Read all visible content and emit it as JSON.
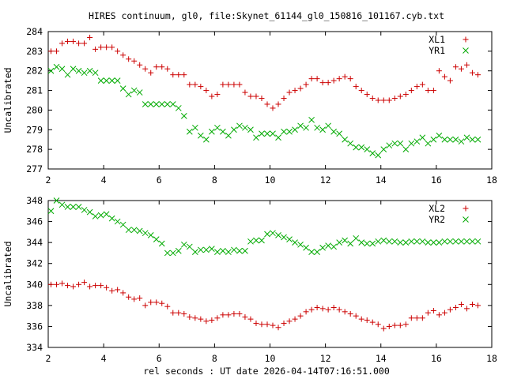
{
  "title": "HIRES continuum, gl0, file:Skynet_61144_gl0_150816_101167.cyb.txt",
  "xlabel": "rel seconds : UT date 2026-04-14T07:16:51.000",
  "colors": {
    "red": "#cc0000",
    "green": "#00aa00"
  },
  "chart_data": [
    {
      "type": "scatter",
      "ylabel": "Uncalibrated",
      "xlim": [
        2,
        18
      ],
      "ylim": [
        277,
        284
      ],
      "xticks": [
        2,
        4,
        6,
        8,
        10,
        12,
        14,
        16,
        18
      ],
      "yticks": [
        277,
        278,
        279,
        280,
        281,
        282,
        283,
        284
      ],
      "legend_position": "top-right",
      "x": [
        2.1,
        2.3,
        2.5,
        2.7,
        2.9,
        3.1,
        3.3,
        3.5,
        3.7,
        3.9,
        4.1,
        4.3,
        4.5,
        4.7,
        4.9,
        5.1,
        5.3,
        5.5,
        5.7,
        5.9,
        6.1,
        6.3,
        6.5,
        6.7,
        6.9,
        7.1,
        7.3,
        7.5,
        7.7,
        7.9,
        8.1,
        8.3,
        8.5,
        8.7,
        8.9,
        9.1,
        9.3,
        9.5,
        9.7,
        9.9,
        10.1,
        10.3,
        10.5,
        10.7,
        10.9,
        11.1,
        11.3,
        11.5,
        11.7,
        11.9,
        12.1,
        12.3,
        12.5,
        12.7,
        12.9,
        13.1,
        13.3,
        13.5,
        13.7,
        13.9,
        14.1,
        14.3,
        14.5,
        14.7,
        14.9,
        15.1,
        15.3,
        15.5,
        15.7,
        15.9,
        16.1,
        16.3,
        16.5,
        16.7,
        16.9,
        17.1,
        17.3,
        17.5
      ],
      "series": [
        {
          "name": "XL1",
          "color": "#cc0000",
          "marker": "plus",
          "values": [
            283.0,
            283.0,
            283.4,
            283.5,
            283.5,
            283.4,
            283.4,
            283.7,
            283.1,
            283.2,
            283.2,
            283.2,
            283.0,
            282.8,
            282.6,
            282.5,
            282.3,
            282.1,
            281.9,
            282.2,
            282.2,
            282.1,
            281.8,
            281.8,
            281.8,
            281.3,
            281.3,
            281.2,
            281.0,
            280.7,
            280.8,
            281.3,
            281.3,
            281.3,
            281.3,
            280.9,
            280.7,
            280.7,
            280.6,
            280.3,
            280.1,
            280.3,
            280.6,
            280.9,
            281.0,
            281.1,
            281.3,
            281.6,
            281.6,
            281.4,
            281.4,
            281.5,
            281.6,
            281.7,
            281.6,
            281.2,
            281.0,
            280.8,
            280.6,
            280.5,
            280.5,
            280.5,
            280.6,
            280.7,
            280.8,
            281.0,
            281.2,
            281.3,
            281.0,
            281.0,
            282.0,
            281.7,
            281.5,
            282.2,
            282.1,
            282.3,
            281.9,
            281.8
          ]
        },
        {
          "name": "YR1",
          "color": "#00aa00",
          "marker": "x",
          "values": [
            282.0,
            282.2,
            282.1,
            281.8,
            282.1,
            282.0,
            281.9,
            282.0,
            281.9,
            281.5,
            281.5,
            281.5,
            281.5,
            281.1,
            280.8,
            281.0,
            280.9,
            280.3,
            280.3,
            280.3,
            280.3,
            280.3,
            280.3,
            280.1,
            279.7,
            278.9,
            279.1,
            278.7,
            278.5,
            278.9,
            279.1,
            278.9,
            278.7,
            279.0,
            279.2,
            279.1,
            279.0,
            278.6,
            278.8,
            278.8,
            278.8,
            278.6,
            278.9,
            278.9,
            279.0,
            279.2,
            279.1,
            279.5,
            279.1,
            279.0,
            279.2,
            278.9,
            278.8,
            278.5,
            278.3,
            278.1,
            278.1,
            278.0,
            277.8,
            277.7,
            278.0,
            278.2,
            278.3,
            278.3,
            278.0,
            278.3,
            278.4,
            278.6,
            278.3,
            278.5,
            278.7,
            278.5,
            278.5,
            278.5,
            278.4,
            278.6,
            278.5,
            278.5
          ]
        }
      ]
    },
    {
      "type": "scatter",
      "ylabel": "Uncalibrated",
      "xlim": [
        2,
        18
      ],
      "ylim": [
        334,
        348
      ],
      "xticks": [
        2,
        4,
        6,
        8,
        10,
        12,
        14,
        16,
        18
      ],
      "yticks": [
        334,
        336,
        338,
        340,
        342,
        344,
        346,
        348
      ],
      "legend_position": "top-right",
      "x": [
        2.1,
        2.3,
        2.5,
        2.7,
        2.9,
        3.1,
        3.3,
        3.5,
        3.7,
        3.9,
        4.1,
        4.3,
        4.5,
        4.7,
        4.9,
        5.1,
        5.3,
        5.5,
        5.7,
        5.9,
        6.1,
        6.3,
        6.5,
        6.7,
        6.9,
        7.1,
        7.3,
        7.5,
        7.7,
        7.9,
        8.1,
        8.3,
        8.5,
        8.7,
        8.9,
        9.1,
        9.3,
        9.5,
        9.7,
        9.9,
        10.1,
        10.3,
        10.5,
        10.7,
        10.9,
        11.1,
        11.3,
        11.5,
        11.7,
        11.9,
        12.1,
        12.3,
        12.5,
        12.7,
        12.9,
        13.1,
        13.3,
        13.5,
        13.7,
        13.9,
        14.1,
        14.3,
        14.5,
        14.7,
        14.9,
        15.1,
        15.3,
        15.5,
        15.7,
        15.9,
        16.1,
        16.3,
        16.5,
        16.7,
        16.9,
        17.1,
        17.3,
        17.5
      ],
      "series": [
        {
          "name": "XL2",
          "color": "#cc0000",
          "marker": "plus",
          "values": [
            340.0,
            340.0,
            340.1,
            339.9,
            339.8,
            340.0,
            340.2,
            339.8,
            339.9,
            339.9,
            339.7,
            339.4,
            339.5,
            339.2,
            338.8,
            338.6,
            338.7,
            338.0,
            338.3,
            338.3,
            338.2,
            337.9,
            337.3,
            337.3,
            337.2,
            336.9,
            336.8,
            336.7,
            336.5,
            336.6,
            336.8,
            337.1,
            337.1,
            337.2,
            337.2,
            336.9,
            336.7,
            336.3,
            336.2,
            336.2,
            336.1,
            335.9,
            336.3,
            336.5,
            336.7,
            337.0,
            337.4,
            337.6,
            337.8,
            337.7,
            337.6,
            337.8,
            337.6,
            337.4,
            337.2,
            337.0,
            336.7,
            336.6,
            336.4,
            336.2,
            335.8,
            336.0,
            336.1,
            336.1,
            336.2,
            336.8,
            336.8,
            336.8,
            337.3,
            337.5,
            337.1,
            337.3,
            337.6,
            337.8,
            338.1,
            337.7,
            338.1,
            338.0
          ]
        },
        {
          "name": "YR2",
          "color": "#00aa00",
          "marker": "x",
          "values": [
            347.0,
            348.0,
            347.6,
            347.4,
            347.4,
            347.4,
            347.1,
            346.9,
            346.5,
            346.6,
            346.7,
            346.3,
            346.0,
            345.7,
            345.2,
            345.2,
            345.1,
            344.9,
            344.7,
            344.3,
            343.9,
            343.0,
            343.0,
            343.2,
            343.8,
            343.6,
            343.1,
            343.3,
            343.3,
            343.4,
            343.1,
            343.2,
            343.1,
            343.3,
            343.2,
            343.2,
            344.1,
            344.2,
            344.2,
            344.8,
            344.9,
            344.7,
            344.5,
            344.3,
            344.0,
            343.8,
            343.5,
            343.1,
            343.1,
            343.5,
            343.7,
            343.6,
            344.0,
            344.2,
            343.9,
            344.4,
            344.0,
            343.9,
            343.9,
            344.1,
            344.2,
            344.1,
            344.1,
            344.0,
            344.0,
            344.1,
            344.1,
            344.1,
            344.0,
            344.0,
            344.0,
            344.1,
            344.1,
            344.1,
            344.1,
            344.1,
            344.1,
            344.1
          ]
        }
      ]
    }
  ]
}
